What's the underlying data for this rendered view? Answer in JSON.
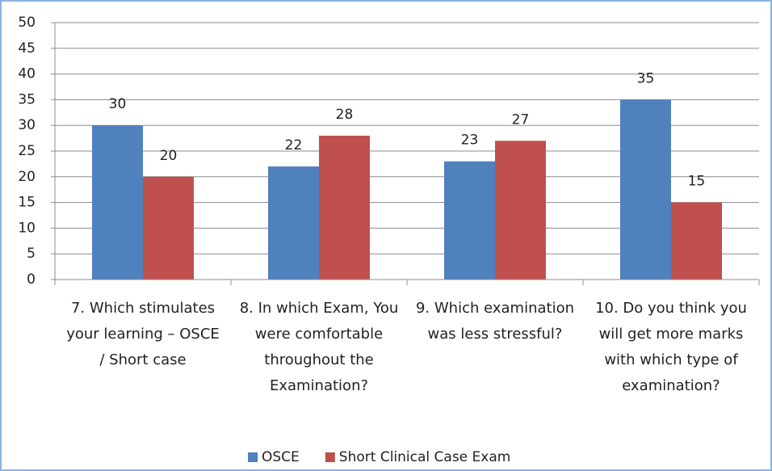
{
  "chart_data": {
    "type": "bar",
    "categories": [
      "7. Which stimulates your learning – OSCE / Short case",
      "8. In which Exam, You were comfortable throughout the Examination?",
      "9. Which examination was less stressful?",
      "10. Do you think you will get more marks with which type of examination?"
    ],
    "series": [
      {
        "name": "OSCE",
        "color": "#4f81bd",
        "values": [
          30,
          22,
          23,
          35
        ]
      },
      {
        "name": "Short Clinical Case Exam",
        "color": "#c0504d",
        "values": [
          20,
          28,
          27,
          15
        ]
      }
    ],
    "ylim": [
      0,
      50
    ],
    "yticks": [
      0,
      5,
      10,
      15,
      20,
      25,
      30,
      35,
      40,
      45,
      50
    ],
    "grid": true,
    "legend": "bottom"
  }
}
